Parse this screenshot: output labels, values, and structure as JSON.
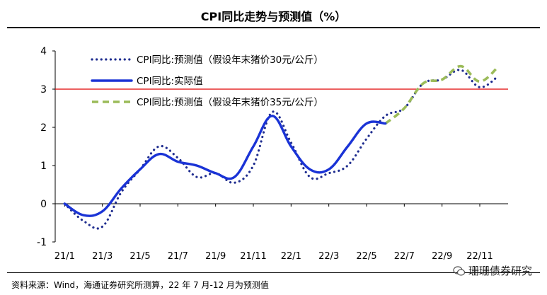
{
  "title": "CPI同比走势与预测值（%）",
  "source": "资料来源：Wind，海通证券研究所测算，22 年 7 月-12 月为预测值",
  "watermark": "珊珊债券研究",
  "colors": {
    "forecast30": "#1f2d8f",
    "actual": "#1a33d6",
    "forecast35": "#9bbb59",
    "refline": "#e00000"
  },
  "chart_data": {
    "type": "line",
    "title": "CPI同比走势与预测值（%）",
    "xlabel": "",
    "ylabel": "",
    "ylim": [
      -1,
      4
    ],
    "yticks": [
      "-1",
      "0",
      "1",
      "2",
      "3",
      "4"
    ],
    "xtick_labels": [
      "21/1",
      "21/3",
      "21/5",
      "21/7",
      "21/9",
      "21/11",
      "22/1",
      "22/3",
      "22/5",
      "22/7",
      "22/9",
      "22/11"
    ],
    "reference_line": {
      "y": 3
    },
    "legend": {
      "position": "top-left"
    },
    "series": [
      {
        "name": "CPI同比:预测值（假设年末猪价30元/公斤）",
        "style": "dotted",
        "x": [
          0,
          1,
          2,
          3,
          4,
          5,
          6,
          7,
          8,
          9,
          10,
          11,
          12,
          13,
          14,
          15,
          16,
          17,
          18,
          19,
          20,
          21,
          22,
          23
        ],
        "y": [
          0,
          -0.45,
          -0.6,
          0.3,
          0.9,
          1.5,
          1.2,
          0.7,
          0.8,
          0.55,
          1.0,
          2.4,
          1.6,
          0.7,
          0.8,
          1.0,
          1.7,
          2.3,
          2.5,
          3.15,
          3.25,
          3.5,
          3.05,
          3.35
        ]
      },
      {
        "name": "CPI同比:实际值",
        "style": "solid",
        "x": [
          0,
          1,
          2,
          3,
          4,
          5,
          6,
          7,
          8,
          9,
          10,
          11,
          12,
          13,
          14,
          15,
          16,
          17
        ],
        "y": [
          0,
          -0.3,
          -0.2,
          0.4,
          0.9,
          1.3,
          1.1,
          1.0,
          0.8,
          0.7,
          1.5,
          2.3,
          1.5,
          0.9,
          0.9,
          1.5,
          2.1,
          2.1
        ]
      },
      {
        "name": "CPI同比:预测值（假设年末猪价35元/公斤）",
        "style": "dashed",
        "x": [
          17,
          18,
          19,
          20,
          21,
          22,
          23
        ],
        "y": [
          2.1,
          2.5,
          3.15,
          3.25,
          3.6,
          3.2,
          3.6
        ]
      }
    ]
  }
}
